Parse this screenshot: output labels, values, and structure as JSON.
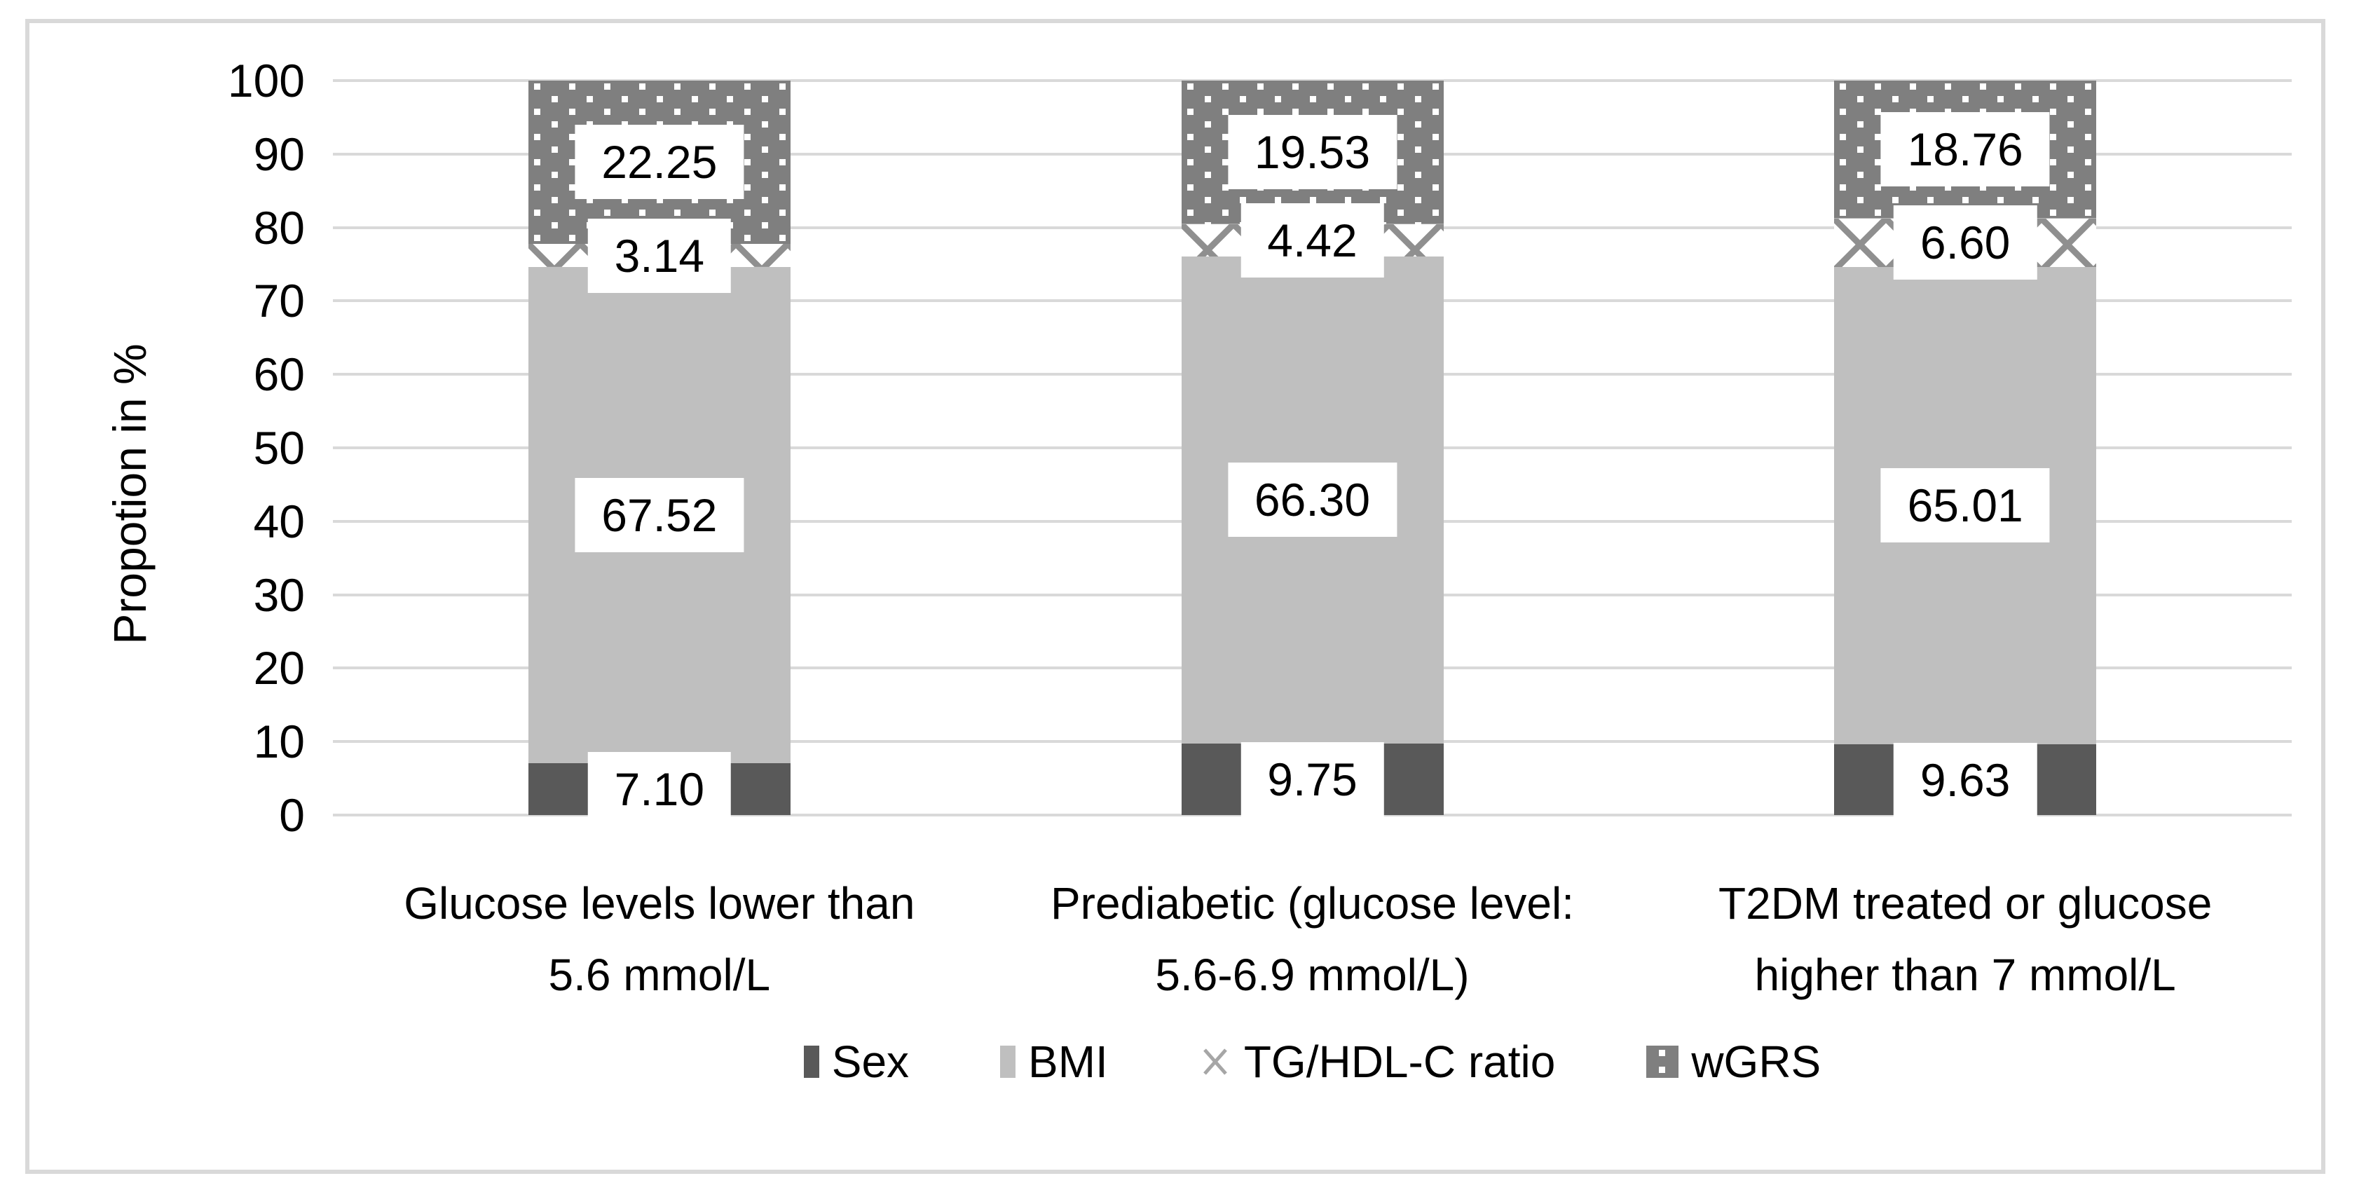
{
  "figure": {
    "background": "#ffffff",
    "frame_color": "#d9d9d9"
  },
  "chart_data": {
    "type": "bar",
    "stacked": true,
    "title": "",
    "xlabel": "",
    "ylabel": "Propotion in %",
    "ylim": [
      0,
      100
    ],
    "yticks": [
      0,
      10,
      20,
      30,
      40,
      50,
      60,
      70,
      80,
      90,
      100
    ],
    "grid": true,
    "gridline_color": "#d9d9d9",
    "legend_position": "bottom",
    "categories": [
      {
        "lines": [
          "Glucose levels lower than",
          "5.6 mmol/L"
        ]
      },
      {
        "lines": [
          "Prediabetic (glucose level:",
          "5.6-6.9 mmol/L)"
        ]
      },
      {
        "lines": [
          "T2DM treated or glucose",
          "higher than 7 mmol/L"
        ]
      }
    ],
    "series": [
      {
        "name": "Sex",
        "fill": "solid-dark",
        "color": "#595959",
        "values": [
          7.1,
          9.75,
          9.63
        ],
        "labels": [
          "7.10",
          "9.75",
          "9.63"
        ]
      },
      {
        "name": "BMI",
        "fill": "solid-light",
        "color": "#bfbfbf",
        "values": [
          67.52,
          66.3,
          65.01
        ],
        "labels": [
          "67.52",
          "66.30",
          "65.01"
        ]
      },
      {
        "name": "TG/HDL-C ratio",
        "fill": "crosshatch",
        "color": "#8f8f8f",
        "values": [
          3.14,
          4.42,
          6.6
        ],
        "labels": [
          "3.14",
          "4.42",
          "6.60"
        ]
      },
      {
        "name": "wGRS",
        "fill": "dots",
        "color": "#7f7f7f",
        "values": [
          22.25,
          19.53,
          18.76
        ],
        "labels": [
          "22.25",
          "19.53",
          "18.76"
        ]
      }
    ]
  }
}
